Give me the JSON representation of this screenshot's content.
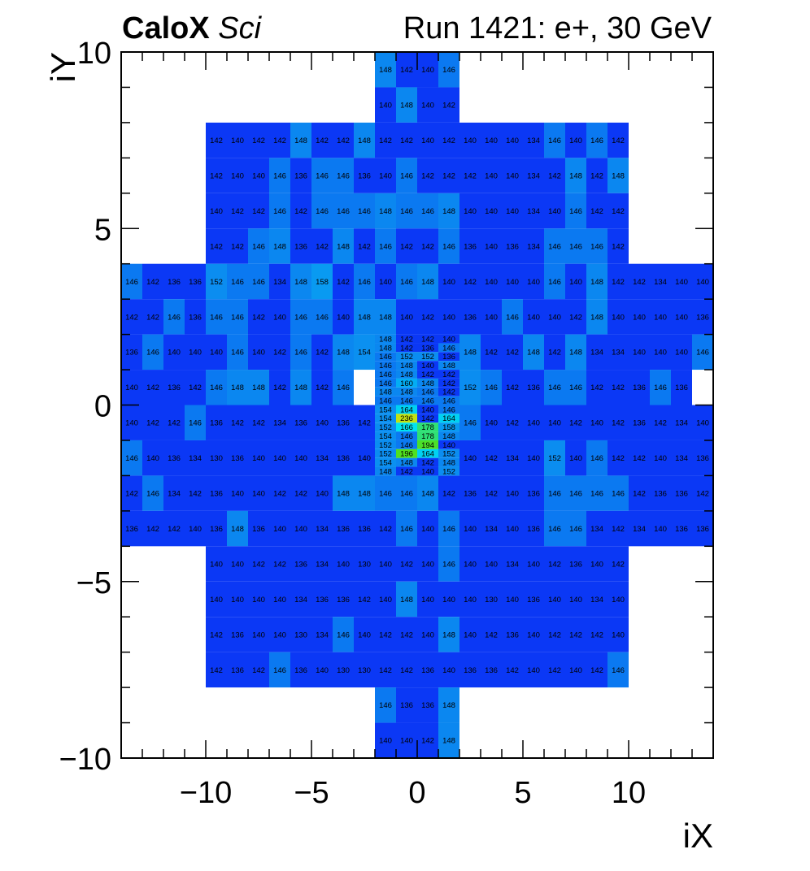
{
  "chart_data": {
    "type": "heatmap",
    "title_bold": "CaloX",
    "title_italic": "Sci",
    "title_right": "Run 1421: e+, 30 GeV",
    "xlabel": "iX",
    "ylabel": "iY",
    "xlim": [
      -14,
      14
    ],
    "ylim": [
      -10,
      10
    ],
    "x_ticks": [
      "−10",
      "−5",
      "0",
      "5",
      "10"
    ],
    "y_ticks": [
      "−10",
      "−5",
      "0",
      "5",
      "10"
    ],
    "colormap": "kBird (blue → cyan → green → yellow)",
    "color_scale_range": [
      130,
      240
    ],
    "coarse_rows": [
      {
        "y": 9,
        "x0": -2,
        "values": [
          148,
          142,
          140,
          146
        ]
      },
      {
        "y": 8,
        "x0": -2,
        "values": [
          140,
          148,
          140,
          142
        ]
      },
      {
        "y": 7,
        "x0": -10,
        "values": [
          142,
          140,
          142,
          142,
          148,
          142,
          142,
          148,
          142,
          142,
          140,
          142,
          140,
          140,
          140,
          134,
          146,
          140,
          146,
          142
        ]
      },
      {
        "y": 6,
        "x0": -10,
        "values": [
          142,
          140,
          140,
          146,
          136,
          146,
          146,
          136,
          140,
          146,
          142,
          142,
          142,
          140,
          140,
          134,
          142,
          148,
          142,
          148
        ]
      },
      {
        "y": 5,
        "x0": -10,
        "values": [
          140,
          142,
          142,
          146,
          142,
          146,
          146,
          146,
          148,
          146,
          146,
          148,
          140,
          140,
          140,
          134,
          140,
          146,
          142,
          142
        ]
      },
      {
        "y": 4,
        "x0": -10,
        "values": [
          142,
          142,
          146,
          148,
          136,
          142,
          148,
          142,
          146,
          142,
          142,
          146,
          136,
          140,
          136,
          134,
          146,
          146,
          146,
          142
        ]
      },
      {
        "y": 3,
        "x0": -14,
        "values": [
          146,
          142,
          136,
          136,
          152,
          146,
          146,
          134,
          148,
          158,
          142,
          146,
          140,
          146,
          148,
          140,
          142,
          140,
          140,
          140,
          146,
          140,
          148,
          142,
          142,
          134,
          140,
          140
        ]
      },
      {
        "y": 2,
        "x0": -14,
        "values": [
          142,
          142,
          146,
          136,
          146,
          146,
          142,
          140,
          146,
          146,
          140,
          148,
          148,
          140,
          142,
          140,
          136,
          140,
          146,
          140,
          140,
          142,
          148,
          140,
          140,
          140,
          140,
          136
        ]
      },
      {
        "y": 1,
        "x0": -14,
        "values": [
          136,
          146,
          140,
          140,
          140,
          146,
          140,
          142,
          146,
          142,
          148,
          154,
          null,
          null,
          null,
          null,
          148,
          142,
          142,
          148,
          142,
          148,
          134,
          134,
          140,
          140,
          140,
          146
        ]
      },
      {
        "y": 0,
        "x0": -14,
        "values": [
          140,
          142,
          136,
          142,
          146,
          148,
          148,
          142,
          148,
          142,
          146,
          null,
          null,
          null,
          null,
          null,
          152,
          146,
          142,
          136,
          146,
          146,
          142,
          142,
          136,
          146,
          136,
          null
        ]
      },
      {
        "y": -1,
        "x0": -14,
        "values": [
          140,
          142,
          142,
          146,
          136,
          142,
          142,
          134,
          136,
          140,
          136,
          142,
          null,
          null,
          null,
          null,
          146,
          140,
          142,
          140,
          140,
          142,
          140,
          142,
          136,
          142,
          134,
          140
        ]
      },
      {
        "y": -2,
        "x0": -14,
        "values": [
          146,
          140,
          136,
          134,
          130,
          136,
          140,
          140,
          140,
          134,
          136,
          140,
          null,
          null,
          null,
          null,
          140,
          142,
          134,
          140,
          152,
          140,
          146,
          142,
          142,
          140,
          134,
          136
        ]
      },
      {
        "y": -3,
        "x0": -14,
        "values": [
          142,
          146,
          134,
          142,
          136,
          140,
          140,
          142,
          142,
          140,
          148,
          148,
          146,
          146,
          148,
          142,
          136,
          142,
          140,
          136,
          146,
          146,
          146,
          146,
          142,
          136,
          136,
          142
        ]
      },
      {
        "y": -4,
        "x0": -14,
        "values": [
          136,
          142,
          142,
          140,
          136,
          148,
          136,
          140,
          140,
          134,
          136,
          136,
          142,
          146,
          140,
          146,
          140,
          134,
          140,
          136,
          146,
          146,
          134,
          142,
          134,
          140,
          136,
          136
        ]
      },
      {
        "y": -5,
        "x0": -10,
        "values": [
          140,
          140,
          142,
          142,
          136,
          134,
          140,
          130,
          140,
          142,
          140,
          146,
          140,
          140,
          134,
          140,
          142,
          136,
          140,
          142
        ]
      },
      {
        "y": -6,
        "x0": -10,
        "values": [
          140,
          140,
          140,
          140,
          134,
          136,
          136,
          142,
          140,
          148,
          140,
          140,
          140,
          130,
          140,
          136,
          140,
          140,
          134,
          140
        ]
      },
      {
        "y": -7,
        "x0": -10,
        "values": [
          142,
          136,
          140,
          140,
          130,
          134,
          146,
          140,
          142,
          142,
          140,
          148,
          140,
          142,
          136,
          140,
          142,
          142,
          142,
          140
        ]
      },
      {
        "y": -8,
        "x0": -10,
        "values": [
          142,
          136,
          142,
          146,
          136,
          140,
          130,
          130,
          142,
          142,
          136,
          140,
          136,
          136,
          142,
          140,
          142,
          140,
          142,
          146
        ]
      },
      {
        "y": -9,
        "x0": -2,
        "values": [
          146,
          136,
          136,
          148
        ]
      },
      {
        "y": -10,
        "x0": -2,
        "values": [
          140,
          140,
          142,
          148
        ]
      }
    ],
    "fine_region": {
      "x0": -2,
      "y_top": 2,
      "row_height": 0.25,
      "cell_width": 1,
      "rows": [
        [
          148,
          142,
          142,
          140
        ],
        [
          148,
          142,
          136,
          146
        ],
        [
          146,
          152,
          152,
          136
        ],
        [
          146,
          148,
          140,
          148
        ],
        [
          146,
          148,
          142,
          142
        ],
        [
          146,
          160,
          148,
          142
        ],
        [
          148,
          148,
          146,
          142
        ],
        [
          146,
          146,
          146,
          146
        ],
        [
          154,
          164,
          140,
          146
        ],
        [
          154,
          236,
          142,
          164
        ],
        [
          152,
          166,
          178,
          158
        ],
        [
          154,
          146,
          178,
          148
        ],
        [
          152,
          146,
          194,
          140
        ],
        [
          152,
          196,
          164,
          152
        ],
        [
          154,
          148,
          142,
          148
        ],
        [
          148,
          142,
          140,
          152
        ]
      ]
    }
  }
}
